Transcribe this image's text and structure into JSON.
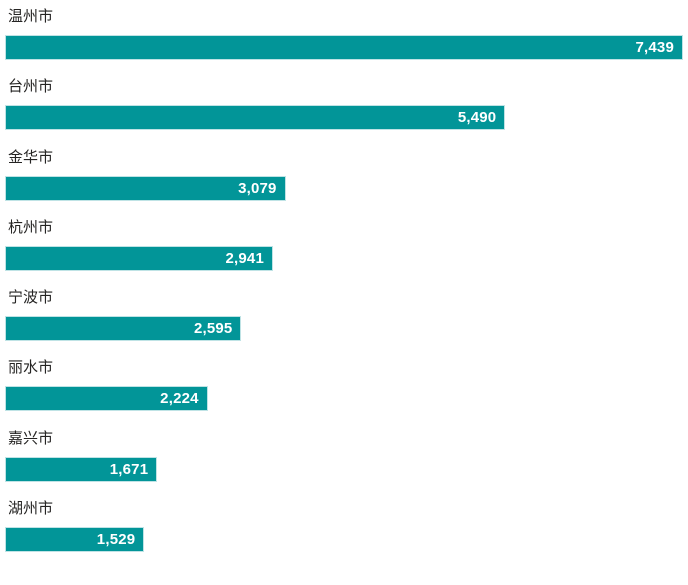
{
  "chart_data": {
    "type": "bar",
    "orientation": "horizontal",
    "title": "",
    "xlabel": "",
    "ylabel": "",
    "categories": [
      "温州市",
      "台州市",
      "金华市",
      "杭州市",
      "宁波市",
      "丽水市",
      "嘉兴市",
      "湖州市"
    ],
    "values": [
      7439,
      5490,
      3079,
      2941,
      2595,
      2224,
      1671,
      1529
    ],
    "value_labels": [
      "7,439",
      "5,490",
      "3,079",
      "2,941",
      "2,595",
      "2,224",
      "1,671",
      "1,529"
    ],
    "xlim": [
      0,
      7439
    ],
    "grid": false,
    "legend": false,
    "axis_lines": false,
    "value_label_position": "inside-end",
    "colors": {
      "background": "#FFFFFF",
      "bar_fill": "#029598",
      "bar_border": "#BFE3E5",
      "value_label": "#FFFFFF",
      "category_label": "#252423"
    }
  }
}
